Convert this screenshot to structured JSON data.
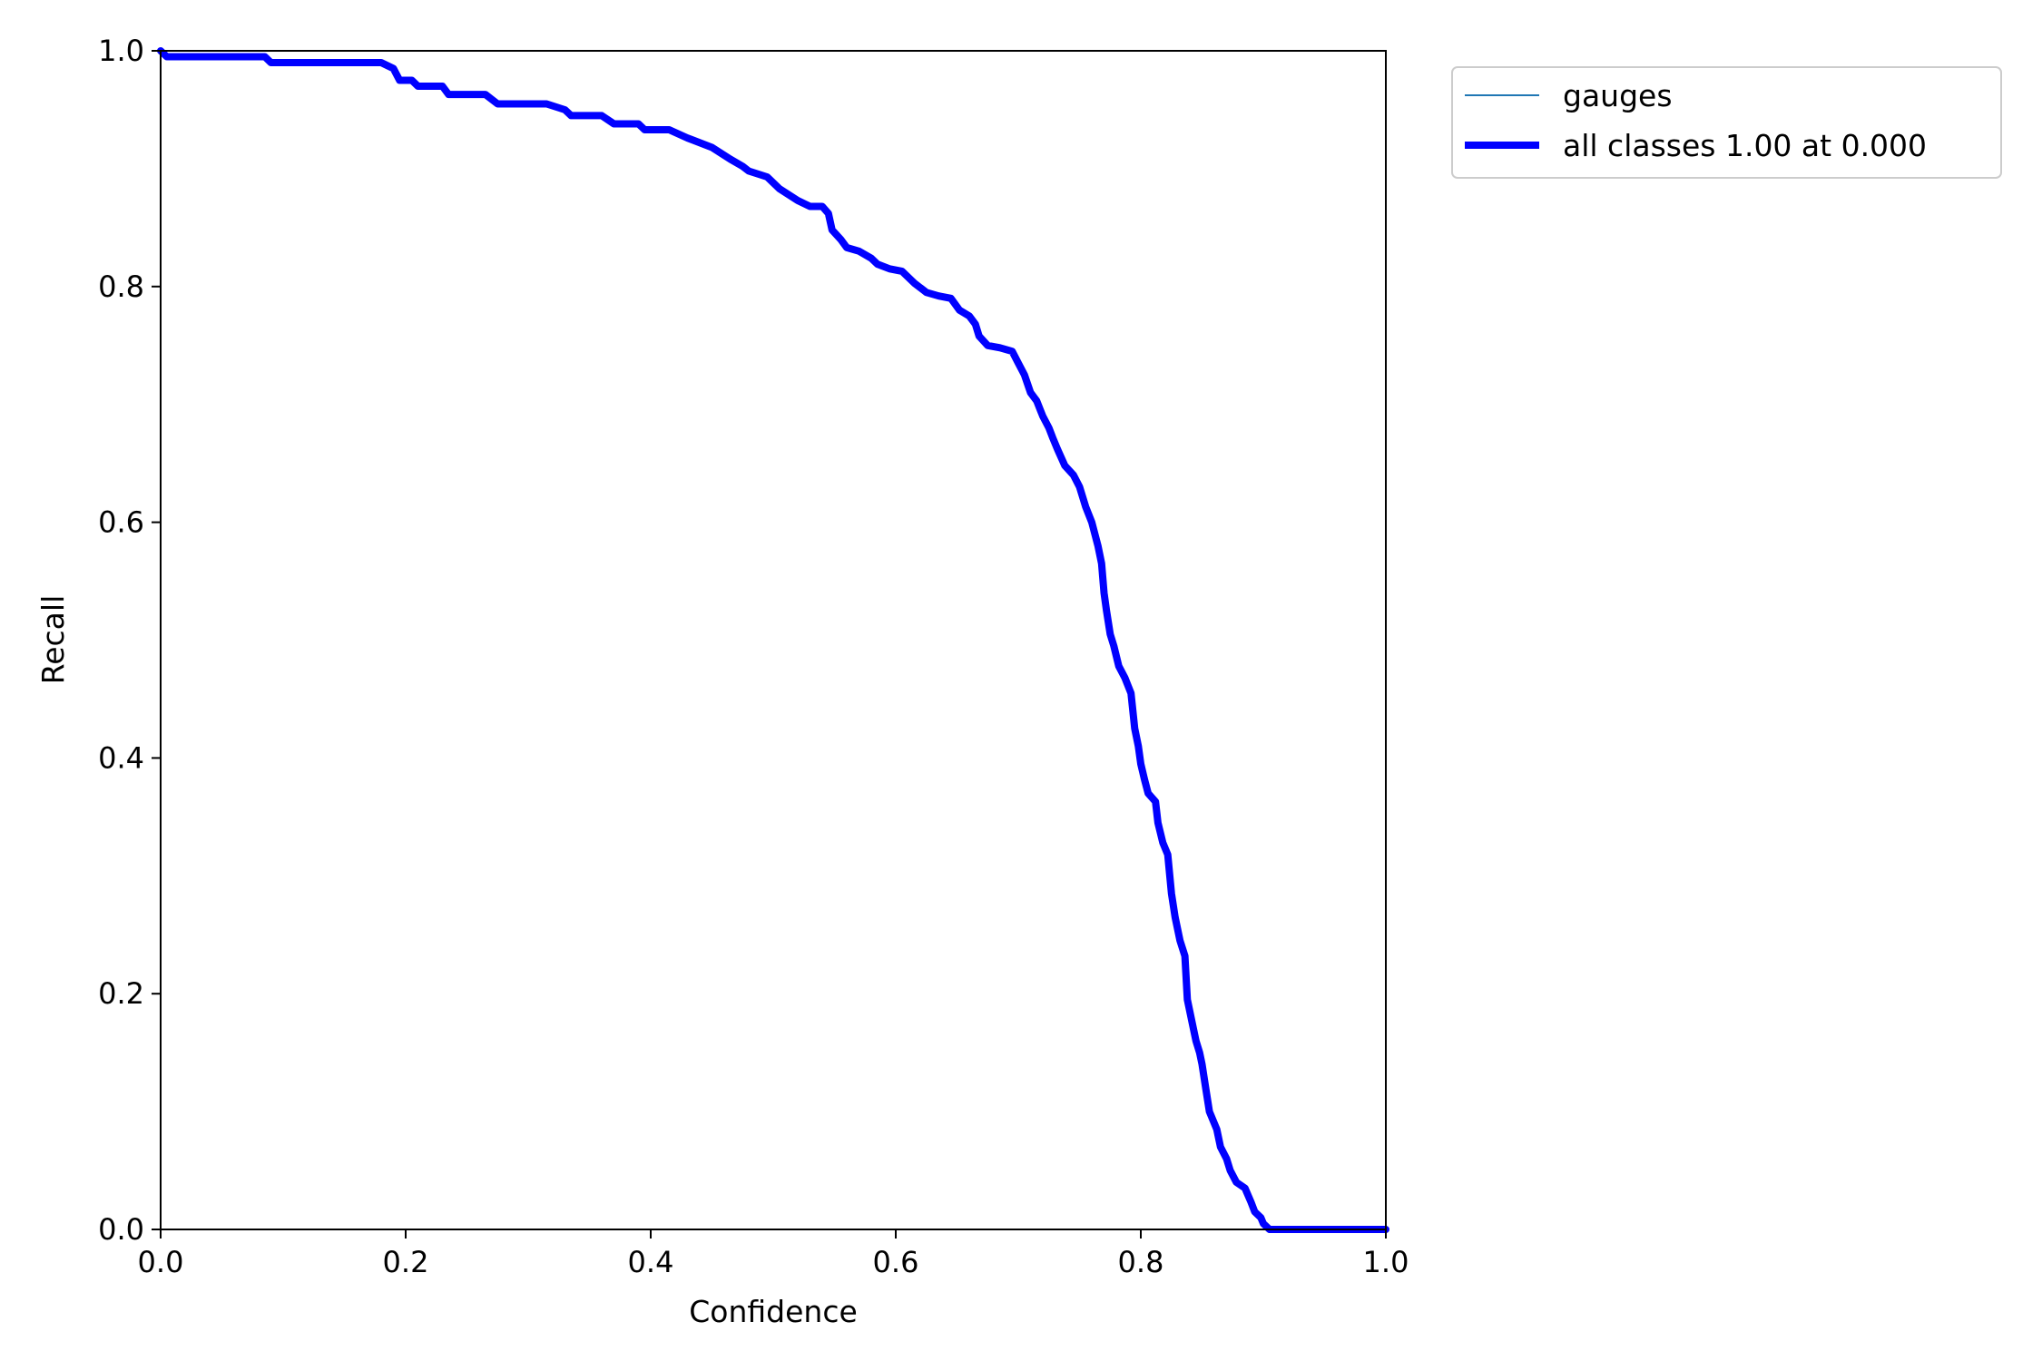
{
  "chart_data": {
    "type": "line",
    "title": "",
    "xlabel": "Confidence",
    "ylabel": "Recall",
    "xlim": [
      0,
      1
    ],
    "ylim": [
      0,
      1
    ],
    "grid": false,
    "legend_placement": "outside-top-right",
    "xticks": [
      "0.0",
      "0.2",
      "0.4",
      "0.6",
      "0.8",
      "1.0"
    ],
    "yticks": [
      "0.0",
      "0.2",
      "0.4",
      "0.6",
      "0.8",
      "1.0"
    ],
    "series": [
      {
        "name": "gauges",
        "color": "#1f77b4",
        "points": [
          [
            0.0,
            1.0
          ],
          [
            0.005,
            0.995
          ],
          [
            0.085,
            0.995
          ],
          [
            0.09,
            0.99
          ],
          [
            0.18,
            0.99
          ],
          [
            0.19,
            0.985
          ],
          [
            0.195,
            0.975
          ],
          [
            0.205,
            0.975
          ],
          [
            0.21,
            0.97
          ],
          [
            0.23,
            0.97
          ],
          [
            0.235,
            0.963
          ],
          [
            0.265,
            0.963
          ],
          [
            0.275,
            0.955
          ],
          [
            0.315,
            0.955
          ],
          [
            0.33,
            0.95
          ],
          [
            0.335,
            0.945
          ],
          [
            0.36,
            0.945
          ],
          [
            0.37,
            0.938
          ],
          [
            0.39,
            0.938
          ],
          [
            0.395,
            0.933
          ],
          [
            0.415,
            0.933
          ],
          [
            0.43,
            0.926
          ],
          [
            0.45,
            0.918
          ],
          [
            0.465,
            0.908
          ],
          [
            0.475,
            0.902
          ],
          [
            0.48,
            0.898
          ],
          [
            0.495,
            0.893
          ],
          [
            0.505,
            0.883
          ],
          [
            0.52,
            0.873
          ],
          [
            0.53,
            0.868
          ],
          [
            0.54,
            0.868
          ],
          [
            0.545,
            0.862
          ],
          [
            0.548,
            0.848
          ],
          [
            0.555,
            0.84
          ],
          [
            0.56,
            0.833
          ],
          [
            0.57,
            0.83
          ],
          [
            0.58,
            0.824
          ],
          [
            0.585,
            0.819
          ],
          [
            0.595,
            0.815
          ],
          [
            0.605,
            0.813
          ],
          [
            0.615,
            0.803
          ],
          [
            0.625,
            0.795
          ],
          [
            0.635,
            0.792
          ],
          [
            0.645,
            0.79
          ],
          [
            0.652,
            0.78
          ],
          [
            0.66,
            0.775
          ],
          [
            0.665,
            0.768
          ],
          [
            0.668,
            0.758
          ],
          [
            0.675,
            0.75
          ],
          [
            0.685,
            0.748
          ],
          [
            0.695,
            0.745
          ],
          [
            0.7,
            0.735
          ],
          [
            0.705,
            0.725
          ],
          [
            0.71,
            0.71
          ],
          [
            0.715,
            0.703
          ],
          [
            0.72,
            0.69
          ],
          [
            0.725,
            0.68
          ],
          [
            0.728,
            0.672
          ],
          [
            0.732,
            0.662
          ],
          [
            0.738,
            0.648
          ],
          [
            0.745,
            0.64
          ],
          [
            0.75,
            0.63
          ],
          [
            0.755,
            0.613
          ],
          [
            0.76,
            0.6
          ],
          [
            0.765,
            0.58
          ],
          [
            0.768,
            0.565
          ],
          [
            0.77,
            0.54
          ],
          [
            0.772,
            0.525
          ],
          [
            0.775,
            0.505
          ],
          [
            0.778,
            0.495
          ],
          [
            0.782,
            0.478
          ],
          [
            0.787,
            0.468
          ],
          [
            0.792,
            0.455
          ],
          [
            0.795,
            0.425
          ],
          [
            0.798,
            0.41
          ],
          [
            0.8,
            0.395
          ],
          [
            0.803,
            0.382
          ],
          [
            0.806,
            0.37
          ],
          [
            0.812,
            0.363
          ],
          [
            0.814,
            0.345
          ],
          [
            0.818,
            0.328
          ],
          [
            0.822,
            0.318
          ],
          [
            0.825,
            0.285
          ],
          [
            0.828,
            0.265
          ],
          [
            0.832,
            0.245
          ],
          [
            0.836,
            0.232
          ],
          [
            0.838,
            0.195
          ],
          [
            0.842,
            0.175
          ],
          [
            0.845,
            0.16
          ],
          [
            0.848,
            0.15
          ],
          [
            0.85,
            0.14
          ],
          [
            0.853,
            0.12
          ],
          [
            0.856,
            0.1
          ],
          [
            0.86,
            0.09
          ],
          [
            0.862,
            0.085
          ],
          [
            0.865,
            0.07
          ],
          [
            0.87,
            0.06
          ],
          [
            0.873,
            0.05
          ],
          [
            0.878,
            0.04
          ],
          [
            0.885,
            0.035
          ],
          [
            0.89,
            0.023
          ],
          [
            0.893,
            0.015
          ],
          [
            0.898,
            0.01
          ],
          [
            0.9,
            0.005
          ],
          [
            0.905,
            0.0
          ],
          [
            1.0,
            0.0
          ]
        ]
      },
      {
        "name": "all classes 1.00 at 0.000",
        "color": "#0000ff",
        "points": [
          [
            0.0,
            1.0
          ],
          [
            0.005,
            0.995
          ],
          [
            0.085,
            0.995
          ],
          [
            0.09,
            0.99
          ],
          [
            0.18,
            0.99
          ],
          [
            0.19,
            0.985
          ],
          [
            0.195,
            0.975
          ],
          [
            0.205,
            0.975
          ],
          [
            0.21,
            0.97
          ],
          [
            0.23,
            0.97
          ],
          [
            0.235,
            0.963
          ],
          [
            0.265,
            0.963
          ],
          [
            0.275,
            0.955
          ],
          [
            0.315,
            0.955
          ],
          [
            0.33,
            0.95
          ],
          [
            0.335,
            0.945
          ],
          [
            0.36,
            0.945
          ],
          [
            0.37,
            0.938
          ],
          [
            0.39,
            0.938
          ],
          [
            0.395,
            0.933
          ],
          [
            0.415,
            0.933
          ],
          [
            0.43,
            0.926
          ],
          [
            0.45,
            0.918
          ],
          [
            0.465,
            0.908
          ],
          [
            0.475,
            0.902
          ],
          [
            0.48,
            0.898
          ],
          [
            0.495,
            0.893
          ],
          [
            0.505,
            0.883
          ],
          [
            0.52,
            0.873
          ],
          [
            0.53,
            0.868
          ],
          [
            0.54,
            0.868
          ],
          [
            0.545,
            0.862
          ],
          [
            0.548,
            0.848
          ],
          [
            0.555,
            0.84
          ],
          [
            0.56,
            0.833
          ],
          [
            0.57,
            0.83
          ],
          [
            0.58,
            0.824
          ],
          [
            0.585,
            0.819
          ],
          [
            0.595,
            0.815
          ],
          [
            0.605,
            0.813
          ],
          [
            0.615,
            0.803
          ],
          [
            0.625,
            0.795
          ],
          [
            0.635,
            0.792
          ],
          [
            0.645,
            0.79
          ],
          [
            0.652,
            0.78
          ],
          [
            0.66,
            0.775
          ],
          [
            0.665,
            0.768
          ],
          [
            0.668,
            0.758
          ],
          [
            0.675,
            0.75
          ],
          [
            0.685,
            0.748
          ],
          [
            0.695,
            0.745
          ],
          [
            0.7,
            0.735
          ],
          [
            0.705,
            0.725
          ],
          [
            0.71,
            0.71
          ],
          [
            0.715,
            0.703
          ],
          [
            0.72,
            0.69
          ],
          [
            0.725,
            0.68
          ],
          [
            0.728,
            0.672
          ],
          [
            0.732,
            0.662
          ],
          [
            0.738,
            0.648
          ],
          [
            0.745,
            0.64
          ],
          [
            0.75,
            0.63
          ],
          [
            0.755,
            0.613
          ],
          [
            0.76,
            0.6
          ],
          [
            0.765,
            0.58
          ],
          [
            0.768,
            0.565
          ],
          [
            0.77,
            0.54
          ],
          [
            0.772,
            0.525
          ],
          [
            0.775,
            0.505
          ],
          [
            0.778,
            0.495
          ],
          [
            0.782,
            0.478
          ],
          [
            0.787,
            0.468
          ],
          [
            0.792,
            0.455
          ],
          [
            0.795,
            0.425
          ],
          [
            0.798,
            0.41
          ],
          [
            0.8,
            0.395
          ],
          [
            0.803,
            0.382
          ],
          [
            0.806,
            0.37
          ],
          [
            0.812,
            0.363
          ],
          [
            0.814,
            0.345
          ],
          [
            0.818,
            0.328
          ],
          [
            0.822,
            0.318
          ],
          [
            0.825,
            0.285
          ],
          [
            0.828,
            0.265
          ],
          [
            0.832,
            0.245
          ],
          [
            0.836,
            0.232
          ],
          [
            0.838,
            0.195
          ],
          [
            0.842,
            0.175
          ],
          [
            0.845,
            0.16
          ],
          [
            0.848,
            0.15
          ],
          [
            0.85,
            0.14
          ],
          [
            0.853,
            0.12
          ],
          [
            0.856,
            0.1
          ],
          [
            0.86,
            0.09
          ],
          [
            0.862,
            0.085
          ],
          [
            0.865,
            0.07
          ],
          [
            0.87,
            0.06
          ],
          [
            0.873,
            0.05
          ],
          [
            0.878,
            0.04
          ],
          [
            0.885,
            0.035
          ],
          [
            0.89,
            0.023
          ],
          [
            0.893,
            0.015
          ],
          [
            0.898,
            0.01
          ],
          [
            0.9,
            0.005
          ],
          [
            0.905,
            0.0
          ],
          [
            1.0,
            0.0
          ]
        ]
      }
    ]
  }
}
